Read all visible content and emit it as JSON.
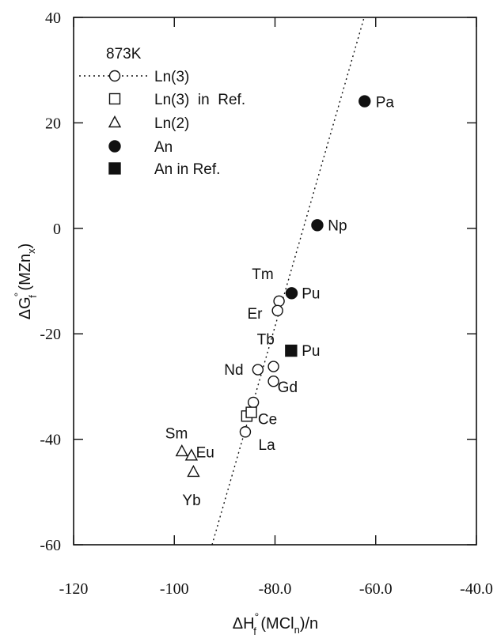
{
  "chart_data": {
    "type": "scatter",
    "xlabel": {
      "main": "ΔH",
      "sup": "°",
      "sub": "f",
      "rest": " (MCl",
      "sub2": "n",
      "tail": ")/n"
    },
    "ylabel": {
      "main": "ΔG",
      "sup": "°",
      "sub": "f",
      "rest": " (MZn",
      "sub2": "x",
      "tail": ")"
    },
    "xlim": [
      -120,
      -40
    ],
    "ylim": [
      -60,
      40
    ],
    "x_ticks": [
      -120,
      -100,
      -80,
      -60,
      -40
    ],
    "x_tick_labels": [
      "-120",
      "-100",
      "-80.0",
      "-60.0",
      "-40.0"
    ],
    "y_ticks": [
      -60,
      -40,
      -20,
      0,
      20,
      40
    ],
    "y_tick_labels": [
      "-60",
      "-40",
      "-20",
      "0",
      "20",
      "40"
    ],
    "legend": {
      "title": "873K",
      "entries": [
        {
          "label": "Ln(3)",
          "marker": "open-circle",
          "line": "dotted"
        },
        {
          "label": "Ln(3)  in  Ref.",
          "marker": "open-square"
        },
        {
          "label": "Ln(2)",
          "marker": "open-triangle"
        },
        {
          "label": "An",
          "marker": "filled-circle"
        },
        {
          "label": "An in Ref.",
          "marker": "filled-square"
        }
      ]
    },
    "fit_line": {
      "style": "dotted",
      "points": [
        [
          -92.5,
          -60
        ],
        [
          -62.3,
          40
        ]
      ]
    },
    "series": [
      {
        "name": "Ln(3)",
        "marker": "open-circle",
        "points": [
          {
            "x": -79.2,
            "y": -13.8
          },
          {
            "x": -79.5,
            "y": -15.6
          },
          {
            "x": -80.3,
            "y": -26.2
          },
          {
            "x": -83.4,
            "y": -26.8
          },
          {
            "x": -80.3,
            "y": -29.0
          },
          {
            "x": -84.3,
            "y": -33.0
          },
          {
            "x": -85.9,
            "y": -38.6
          }
        ]
      },
      {
        "name": "Ln(3)  in  Ref.",
        "marker": "open-square",
        "points": [
          {
            "x": -85.6,
            "y": -35.6
          },
          {
            "x": -84.7,
            "y": -34.9
          }
        ]
      },
      {
        "name": "Ln(2)",
        "marker": "open-triangle",
        "points": [
          {
            "x": -98.5,
            "y": -42.3
          },
          {
            "x": -96.6,
            "y": -43.1
          },
          {
            "x": -96.2,
            "y": -46.2
          }
        ]
      },
      {
        "name": "An",
        "marker": "filled-circle",
        "points": [
          {
            "x": -62.2,
            "y": 24.1
          },
          {
            "x": -71.6,
            "y": 0.6
          },
          {
            "x": -76.7,
            "y": -12.3
          }
        ]
      },
      {
        "name": "An in Ref.",
        "marker": "filled-square",
        "points": [
          {
            "x": -76.8,
            "y": -23.2
          }
        ]
      }
    ],
    "annotations": [
      {
        "text": "Pa",
        "x": -60.0,
        "y": 23.0
      },
      {
        "text": "Np",
        "x": -69.5,
        "y": -0.4
      },
      {
        "text": "Tm",
        "x": -84.6,
        "y": -9.6
      },
      {
        "text": "Pu",
        "x": -74.7,
        "y": -13.3
      },
      {
        "text": "Er",
        "x": -85.5,
        "y": -17.1
      },
      {
        "text": "Tb",
        "x": -83.6,
        "y": -22.0
      },
      {
        "text": "Pu",
        "x": -74.7,
        "y": -24.2
      },
      {
        "text": "Nd",
        "x": -90.1,
        "y": -27.8
      },
      {
        "text": "Gd",
        "x": -79.5,
        "y": -31.1
      },
      {
        "text": "Ce",
        "x": -83.4,
        "y": -37.1
      },
      {
        "text": "Sm",
        "x": -101.8,
        "y": -39.8
      },
      {
        "text": "Eu",
        "x": -95.7,
        "y": -43.4
      },
      {
        "text": "La",
        "x": -83.3,
        "y": -42.0
      },
      {
        "text": "Yb",
        "x": -98.4,
        "y": -52.5
      }
    ]
  }
}
